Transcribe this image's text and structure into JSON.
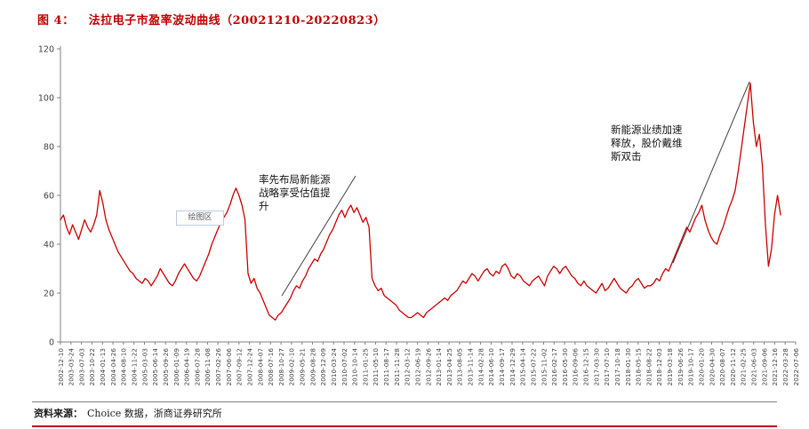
{
  "title": {
    "label": "图 4：",
    "text": "法拉电子市盈率波动曲线（20021210-20220823）"
  },
  "source": {
    "label": "资料来源：",
    "text": "Choice 数据，浙商证券研究所"
  },
  "chart_data": {
    "type": "line",
    "title": "法拉电子市盈率波动曲线（20021210-20220823）",
    "xlabel": "",
    "ylabel": "",
    "ylim": [
      0,
      120
    ],
    "y_ticks": [
      0,
      20,
      40,
      60,
      80,
      100,
      120
    ],
    "grid": false,
    "legend": "none",
    "line_color": "#cc0000",
    "axis_color": "#808080",
    "annotation_line_color": "#404040",
    "series": [
      {
        "name": "市盈率",
        "values": [
          50,
          52,
          47,
          44,
          48,
          45,
          42,
          46,
          50,
          47,
          45,
          48,
          52,
          62,
          57,
          50,
          46,
          43,
          40,
          37,
          35,
          33,
          31,
          29,
          28,
          26,
          25,
          24,
          26,
          25,
          23,
          25,
          27,
          30,
          28,
          26,
          24,
          23,
          25,
          28,
          30,
          32,
          30,
          28,
          26,
          25,
          27,
          30,
          33,
          36,
          40,
          43,
          46,
          49,
          51,
          53,
          56,
          60,
          63,
          60,
          56,
          50,
          28,
          24,
          26,
          22,
          20,
          17,
          14,
          11,
          10,
          9,
          11,
          12,
          14,
          16,
          18,
          21,
          23,
          22,
          25,
          27,
          30,
          32,
          34,
          33,
          36,
          38,
          41,
          44,
          46,
          49,
          52,
          54,
          51,
          54,
          56,
          53,
          55,
          52,
          49,
          51,
          47,
          26,
          23,
          21,
          22,
          19,
          18,
          17,
          16,
          15,
          13,
          12,
          11,
          10,
          10,
          11,
          12,
          11,
          10,
          12,
          13,
          14,
          15,
          16,
          17,
          18,
          17,
          19,
          20,
          21,
          23,
          25,
          24,
          26,
          28,
          27,
          25,
          27,
          29,
          30,
          28,
          27,
          29,
          28,
          31,
          32,
          30,
          27,
          26,
          28,
          27,
          25,
          24,
          23,
          25,
          26,
          27,
          25,
          23,
          27,
          29,
          31,
          30,
          28,
          30,
          31,
          29,
          27,
          26,
          24,
          23,
          25,
          23,
          22,
          21,
          20,
          22,
          24,
          21,
          22,
          24,
          26,
          24,
          22,
          21,
          20,
          22,
          23,
          25,
          26,
          24,
          22,
          23,
          23,
          24,
          26,
          25,
          28,
          30,
          29,
          32,
          35,
          38,
          41,
          44,
          47,
          45,
          48,
          51,
          53,
          56,
          50,
          46,
          43,
          41,
          40,
          44,
          47,
          51,
          55,
          58,
          62,
          70,
          79,
          88,
          97,
          106,
          90,
          80,
          85,
          72,
          48,
          31,
          38,
          52,
          60,
          52
        ]
      }
    ],
    "x_tick_labels": [
      "2002-12-10",
      "2003-03-24",
      "2003-07-03",
      "2003-10-22",
      "2004-01-13",
      "2004-04-26",
      "2004-08-10",
      "2004-11-22",
      "2005-03-03",
      "2005-06-14",
      "2005-09-26",
      "2006-01-09",
      "2006-04-19",
      "2006-07-28",
      "2006-11-08",
      "2007-02-26",
      "2007-06-06",
      "2007-09-12",
      "2007-12-24",
      "2008-04-07",
      "2008-07-16",
      "2008-10-27",
      "2009-02-10",
      "2009-05-21",
      "2009-08-28",
      "2009-12-09",
      "2010-03-24",
      "2010-07-02",
      "2010-10-14",
      "2011-01-25",
      "2011-05-10",
      "2011-08-17",
      "2011-11-28",
      "2012-03-12",
      "2012-06-19",
      "2012-09-26",
      "2013-01-14",
      "2013-04-25",
      "2013-08-05",
      "2013-11-14",
      "2014-02-28",
      "2014-06-10",
      "2014-09-17",
      "2014-12-29",
      "2015-04-14",
      "2015-07-22",
      "2015-11-02",
      "2016-02-17",
      "2016-05-30",
      "2016-09-06",
      "2016-12-15",
      "2017-03-30",
      "2017-07-10",
      "2017-10-18",
      "2018-01-30",
      "2018-05-15",
      "2018-08-22",
      "2018-12-03",
      "2019-03-18",
      "2019-06-26",
      "2019-10-17",
      "2020-01-20",
      "2020-04-30",
      "2020-08-07",
      "2020-11-12",
      "2021-02-25",
      "2021-06-03",
      "2021-09-06",
      "2021-12-16",
      "2022-03-28",
      "2022-07-06"
    ],
    "annotations": [
      {
        "text": "率先布局新能源\n战略享受估值提\n升"
      },
      {
        "text": "新能源业绩加速\n释放，股价戴维\n斯双击"
      },
      {
        "text": "绘图区"
      }
    ]
  }
}
